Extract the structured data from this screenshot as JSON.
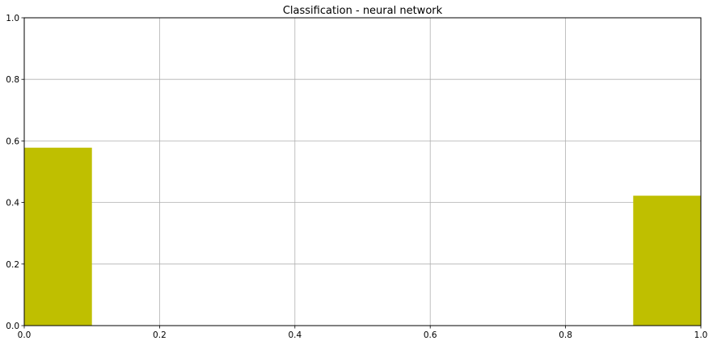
{
  "chart_data": {
    "type": "bar",
    "title": "Classification - neural network",
    "xlabel": "",
    "ylabel": "",
    "xlim": [
      0,
      1
    ],
    "ylim": [
      0,
      1
    ],
    "xticks": [
      "0.0",
      "0.2",
      "0.4",
      "0.6",
      "0.8",
      "1.0"
    ],
    "yticks": [
      "0.0",
      "0.2",
      "0.4",
      "0.6",
      "0.8",
      "1.0"
    ],
    "grid": true,
    "bar_color": "#bfbf00",
    "bars": [
      {
        "x_start": 0.0,
        "x_end": 0.1,
        "value": 0.578
      },
      {
        "x_start": 0.9,
        "x_end": 1.0,
        "value": 0.422
      }
    ]
  }
}
